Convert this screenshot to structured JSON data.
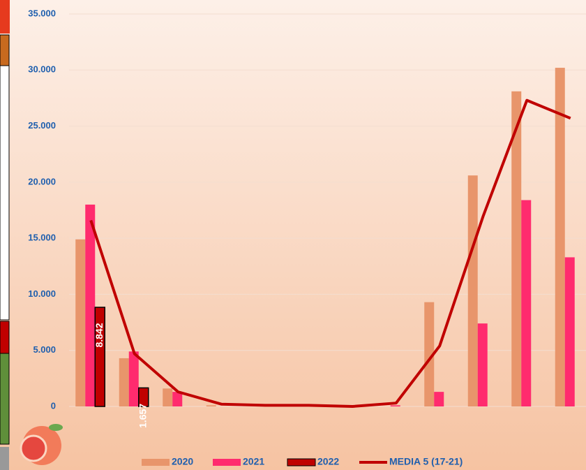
{
  "chart_data": {
    "type": "bar",
    "categories": [
      null,
      null,
      null,
      null,
      null,
      null,
      null,
      null,
      null,
      null,
      null,
      null
    ],
    "series": [
      {
        "name": "2020",
        "type": "bar",
        "color": "#e8956b",
        "values": [
          14900,
          4300,
          1600,
          100,
          0,
          0,
          0,
          0,
          9300,
          20600,
          28100,
          30200
        ]
      },
      {
        "name": "2021",
        "type": "bar",
        "color": "#ff2b6e",
        "values": [
          18000,
          4900,
          1300,
          0,
          0,
          0,
          0,
          100,
          1300,
          7400,
          18400,
          13300
        ]
      },
      {
        "name": "2022",
        "type": "bar",
        "color": "#c00000",
        "values": [
          8842,
          1657,
          null,
          null,
          null,
          null,
          null,
          null,
          null,
          null,
          null,
          null
        ],
        "value_labels": [
          "8.842",
          "1.657",
          null,
          null,
          null,
          null,
          null,
          null,
          null,
          null,
          null,
          null
        ]
      },
      {
        "name": "MEDIA 5 (17-21)",
        "type": "line",
        "color": "#c00000",
        "values": [
          16600,
          4700,
          1300,
          200,
          100,
          100,
          0,
          300,
          5400,
          17000,
          27300,
          25700
        ]
      }
    ],
    "ylim": [
      0,
      35000
    ],
    "yticks": [
      0,
      {
        "value": 5000,
        "label": "5.000"
      },
      {
        "value": 10000,
        "label": "10.000"
      },
      {
        "value": 15000,
        "label": "15.000"
      },
      {
        "value": 20000,
        "label": "20.000"
      },
      {
        "value": 25000,
        "label": "25.000"
      },
      {
        "value": 30000,
        "label": "30.000"
      },
      {
        "value": 35000,
        "label": "35.000"
      }
    ],
    "grid": true
  }
}
